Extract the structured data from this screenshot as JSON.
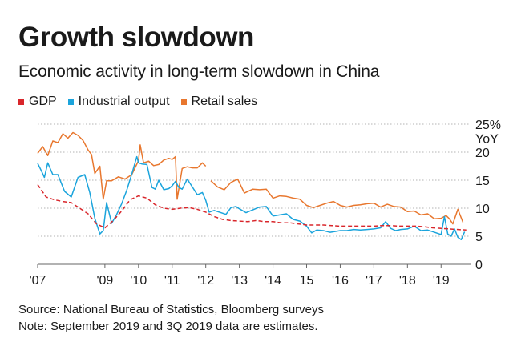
{
  "chart_data": {
    "type": "line",
    "title": "Growth slowdown",
    "subtitle": "Economic activity in long-term slowdown in China",
    "ylabel": "YoY",
    "ylim": [
      0,
      25
    ],
    "xlim": [
      2007,
      2019.9
    ],
    "y_ticks": [
      {
        "value": 25,
        "label": "25%"
      },
      {
        "value": 20,
        "label": "20"
      },
      {
        "value": 15,
        "label": "15"
      },
      {
        "value": 10,
        "label": "10"
      },
      {
        "value": 5,
        "label": "5"
      },
      {
        "value": 0,
        "label": "0"
      }
    ],
    "x_ticks": [
      {
        "value": 2007,
        "label": "'07"
      },
      {
        "value": 2009,
        "label": "'09"
      },
      {
        "value": 2010,
        "label": "'10"
      },
      {
        "value": 2011,
        "label": "'11"
      },
      {
        "value": 2012,
        "label": "'12"
      },
      {
        "value": 2013,
        "label": "'13"
      },
      {
        "value": 2014,
        "label": "'14"
      },
      {
        "value": 2015,
        "label": "15"
      },
      {
        "value": 2016,
        "label": "'16"
      },
      {
        "value": 2017,
        "label": "'17"
      },
      {
        "value": 2018,
        "label": "'18"
      },
      {
        "value": 2019,
        "label": "'19"
      }
    ],
    "legend_position": "top-left",
    "series": [
      {
        "name": "GDP",
        "color": "#d9262b",
        "style": "dashed",
        "x": [
          2007.0,
          2007.25,
          2007.5,
          2007.75,
          2008.0,
          2008.25,
          2008.5,
          2008.75,
          2009.0,
          2009.25,
          2009.5,
          2009.75,
          2010.0,
          2010.25,
          2010.5,
          2010.75,
          2011.0,
          2011.25,
          2011.5,
          2011.75,
          2012.0,
          2012.25,
          2012.5,
          2012.75,
          2013.0,
          2013.25,
          2013.5,
          2013.75,
          2014.0,
          2014.25,
          2014.5,
          2014.75,
          2015.0,
          2015.25,
          2015.5,
          2015.75,
          2016.0,
          2016.25,
          2016.5,
          2016.75,
          2017.0,
          2017.25,
          2017.5,
          2017.75,
          2018.0,
          2018.25,
          2018.5,
          2018.75,
          2019.0,
          2019.25,
          2019.5,
          2019.75
        ],
        "y": [
          14.2,
          12.0,
          11.5,
          11.2,
          11.0,
          10.0,
          9.0,
          7.2,
          6.5,
          7.8,
          9.5,
          11.5,
          12.2,
          11.8,
          10.6,
          10.0,
          9.8,
          10.0,
          10.1,
          9.8,
          9.3,
          8.5,
          8.0,
          7.8,
          7.7,
          7.6,
          7.8,
          7.6,
          7.6,
          7.4,
          7.4,
          7.2,
          7.0,
          7.0,
          7.0,
          6.9,
          6.8,
          6.8,
          6.8,
          6.8,
          6.8,
          6.9,
          6.9,
          6.8,
          6.8,
          6.8,
          6.7,
          6.5,
          6.4,
          6.3,
          6.2,
          6.1
        ]
      },
      {
        "name": "Industrial output",
        "color": "#1ba4dc",
        "style": "solid",
        "x": [
          2007.0,
          2007.1,
          2007.2,
          2007.3,
          2007.45,
          2007.6,
          2007.8,
          2008.0,
          2008.2,
          2008.4,
          2008.55,
          2008.7,
          2008.85,
          2008.95,
          2009.05,
          2009.2,
          2009.35,
          2009.5,
          2009.65,
          2009.8,
          2009.95,
          2010.0,
          2010.1,
          2010.25,
          2010.4,
          2010.5,
          2010.6,
          2010.75,
          2010.9,
          2011.0,
          2011.1,
          2011.2,
          2011.3,
          2011.45,
          2011.6,
          2011.75,
          2011.9,
          2012.0,
          2012.1,
          2012.25,
          2012.45,
          2012.6,
          2012.75,
          2012.9,
          2013.0,
          2013.2,
          2013.4,
          2013.6,
          2013.8,
          2014.0,
          2014.2,
          2014.4,
          2014.6,
          2014.8,
          2015.0,
          2015.15,
          2015.3,
          2015.5,
          2015.7,
          2015.9,
          2016.0,
          2016.2,
          2016.4,
          2016.6,
          2016.8,
          2017.0,
          2017.2,
          2017.35,
          2017.5,
          2017.65,
          2017.8,
          2018.0,
          2018.2,
          2018.4,
          2018.6,
          2018.8,
          2019.0,
          2019.1,
          2019.2,
          2019.3,
          2019.4,
          2019.5,
          2019.6,
          2019.7
        ],
        "y": [
          18.0,
          16.8,
          15.5,
          18.1,
          16.0,
          16.0,
          13.0,
          12.0,
          15.5,
          16.0,
          12.8,
          8.2,
          5.4,
          6.0,
          11.0,
          7.3,
          8.9,
          10.8,
          13.2,
          16.1,
          19.2,
          18.1,
          17.9,
          17.8,
          13.7,
          13.4,
          15.0,
          13.3,
          13.5,
          14.0,
          14.8,
          13.7,
          13.4,
          15.2,
          13.8,
          12.4,
          12.8,
          11.4,
          9.3,
          9.6,
          9.2,
          8.9,
          10.1,
          10.3,
          9.9,
          9.2,
          9.7,
          10.2,
          10.3,
          8.6,
          8.8,
          9.0,
          8.0,
          7.7,
          6.8,
          5.6,
          6.1,
          6.0,
          5.7,
          5.9,
          6.0,
          6.0,
          6.2,
          6.1,
          6.2,
          6.3,
          6.5,
          7.6,
          6.4,
          6.0,
          6.2,
          6.3,
          6.8,
          6.0,
          6.1,
          5.7,
          5.3,
          8.5,
          5.4,
          5.0,
          6.3,
          4.8,
          4.4,
          5.8
        ]
      },
      {
        "name": "Retail sales",
        "color": "#e8772e",
        "style": "solid",
        "x": [
          2007.0,
          2007.15,
          2007.3,
          2007.45,
          2007.6,
          2007.75,
          2007.9,
          2008.05,
          2008.2,
          2008.35,
          2008.5,
          2008.6,
          2008.7,
          2008.85,
          2008.95,
          2009.05,
          2009.2,
          2009.4,
          2009.6,
          2009.8,
          2010.0,
          2010.05,
          2010.15,
          2010.3,
          2010.45,
          2010.6,
          2010.75,
          2010.9,
          2011.0,
          2011.1,
          2011.15,
          2011.3,
          2011.45,
          2011.6,
          2011.75,
          2011.9,
          2012.0,
          null,
          2012.15,
          2012.35,
          2012.55,
          2012.75,
          2012.95,
          2013.15,
          2013.4,
          2013.6,
          2013.8,
          2014.0,
          2014.2,
          2014.4,
          2014.6,
          2014.8,
          2015.0,
          2015.2,
          2015.4,
          2015.6,
          2015.8,
          2016.0,
          2016.2,
          2016.4,
          2016.6,
          2016.8,
          2017.0,
          2017.2,
          2017.4,
          2017.6,
          2017.8,
          2018.0,
          2018.2,
          2018.4,
          2018.6,
          2018.8,
          2019.0,
          2019.15,
          2019.25,
          2019.35,
          2019.5,
          2019.65
        ],
        "y": [
          19.8,
          21.0,
          19.4,
          22.0,
          21.7,
          23.3,
          22.5,
          23.5,
          23.0,
          22.1,
          20.4,
          19.6,
          16.2,
          17.5,
          11.6,
          14.9,
          14.9,
          15.6,
          15.2,
          16.0,
          18.5,
          21.3,
          18.1,
          18.4,
          17.6,
          17.8,
          18.6,
          18.9,
          18.7,
          19.2,
          11.6,
          17.1,
          17.4,
          17.2,
          17.2,
          18.1,
          17.5,
          null,
          14.9,
          13.8,
          13.3,
          14.6,
          15.2,
          12.7,
          13.4,
          13.3,
          13.4,
          11.8,
          12.2,
          12.1,
          11.8,
          11.6,
          10.5,
          10.1,
          10.5,
          10.9,
          11.2,
          10.5,
          10.2,
          10.5,
          10.6,
          10.8,
          10.9,
          10.2,
          10.7,
          10.3,
          10.2,
          9.4,
          9.5,
          8.8,
          9.0,
          8.1,
          8.2,
          8.7,
          8.1,
          7.2,
          9.8,
          7.5
        ]
      }
    ]
  },
  "footer": {
    "source": "Source: National Bureau of Statistics, Bloomberg surveys",
    "note": "Note: September 2019 and 3Q 2019 data are estimates."
  }
}
